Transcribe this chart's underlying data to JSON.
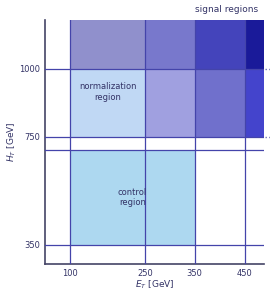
{
  "title": "signal regions",
  "xmin": 50,
  "xmax": 490,
  "ymin": 280,
  "ymax": 1180,
  "et0": 100,
  "et1": 250,
  "et2": 350,
  "et3": 450,
  "ht0": 350,
  "ht1": 700,
  "ht2": 750,
  "ht3": 1000,
  "c_ctrl": "#add8f0",
  "c_norm_lo": "#c0d8f4",
  "c_norm_hi": "#9090cc",
  "c_sig1_lo": "#a0a0e0",
  "c_sig1_hi": "#7878cc",
  "c_sig2_lo": "#7070cc",
  "c_sig2_hi": "#4444bb",
  "c_sig3_lo": "#4444cc",
  "c_sig3_hi": "#1a1a99",
  "line_color": "#4444aa",
  "dot_color": "#7777bb",
  "lw": 0.9
}
